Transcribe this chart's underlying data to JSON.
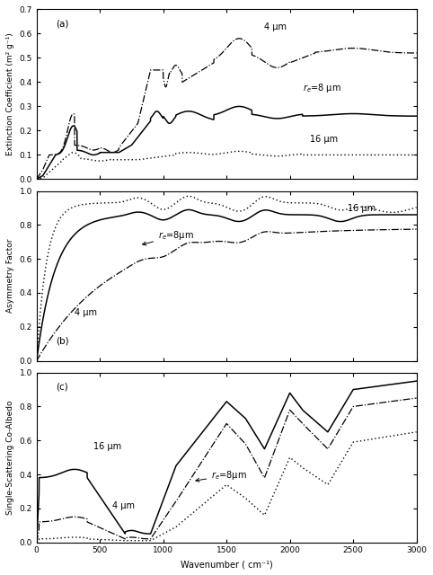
{
  "xlabel": "Wavenumber ( cm⁻¹)",
  "panel_a": {
    "ylabel": "Extinction Coefficient (m² g⁻¹)",
    "label": "(a)",
    "ylim": [
      0.0,
      0.7
    ],
    "yticks": [
      0.0,
      0.1,
      0.2,
      0.3,
      0.4,
      0.5,
      0.6,
      0.7
    ]
  },
  "panel_b": {
    "ylabel": "Asymmetry Factor",
    "label": "(b)",
    "ylim": [
      0.0,
      1.0
    ],
    "yticks": [
      0.0,
      0.2,
      0.4,
      0.6,
      0.8,
      1.0
    ]
  },
  "panel_c": {
    "ylabel": "Single-Scattering Co-Albedo",
    "label": "(c)",
    "ylim": [
      0.0,
      1.0
    ],
    "yticks": [
      0.0,
      0.2,
      0.4,
      0.6,
      0.8,
      1.0
    ]
  }
}
